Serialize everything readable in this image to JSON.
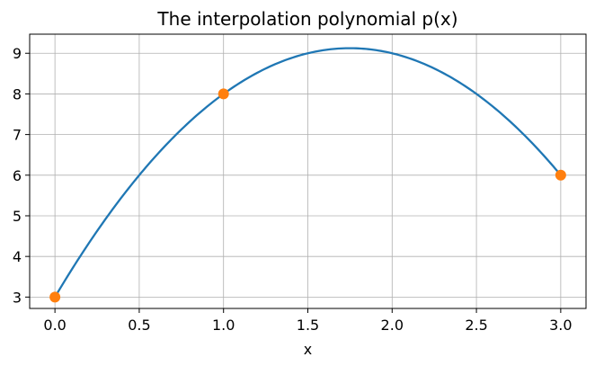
{
  "chart_data": {
    "type": "line",
    "title": "The interpolation polynomial p(x)",
    "xlabel": "x",
    "ylabel": "",
    "xlim": [
      -0.15,
      3.15
    ],
    "ylim": [
      2.72,
      9.47
    ],
    "xticks": [
      0.0,
      0.5,
      1.0,
      1.5,
      2.0,
      2.5,
      3.0
    ],
    "xtick_labels": [
      "0.0",
      "0.5",
      "1.0",
      "1.5",
      "2.0",
      "2.5",
      "3.0"
    ],
    "yticks": [
      3,
      4,
      5,
      6,
      7,
      8,
      9
    ],
    "ytick_labels": [
      "3",
      "4",
      "5",
      "6",
      "7",
      "8",
      "9"
    ],
    "grid": true,
    "legend": "none",
    "series": [
      {
        "kind": "curve",
        "color": "#1f77b4",
        "polynomial_coefficients": [
          3,
          7,
          -2
        ],
        "x_range": [
          0,
          3
        ]
      },
      {
        "kind": "points",
        "color": "#ff7f0e",
        "points": [
          {
            "x": 0,
            "y": 3
          },
          {
            "x": 1,
            "y": 8
          },
          {
            "x": 3,
            "y": 6
          }
        ]
      }
    ]
  }
}
